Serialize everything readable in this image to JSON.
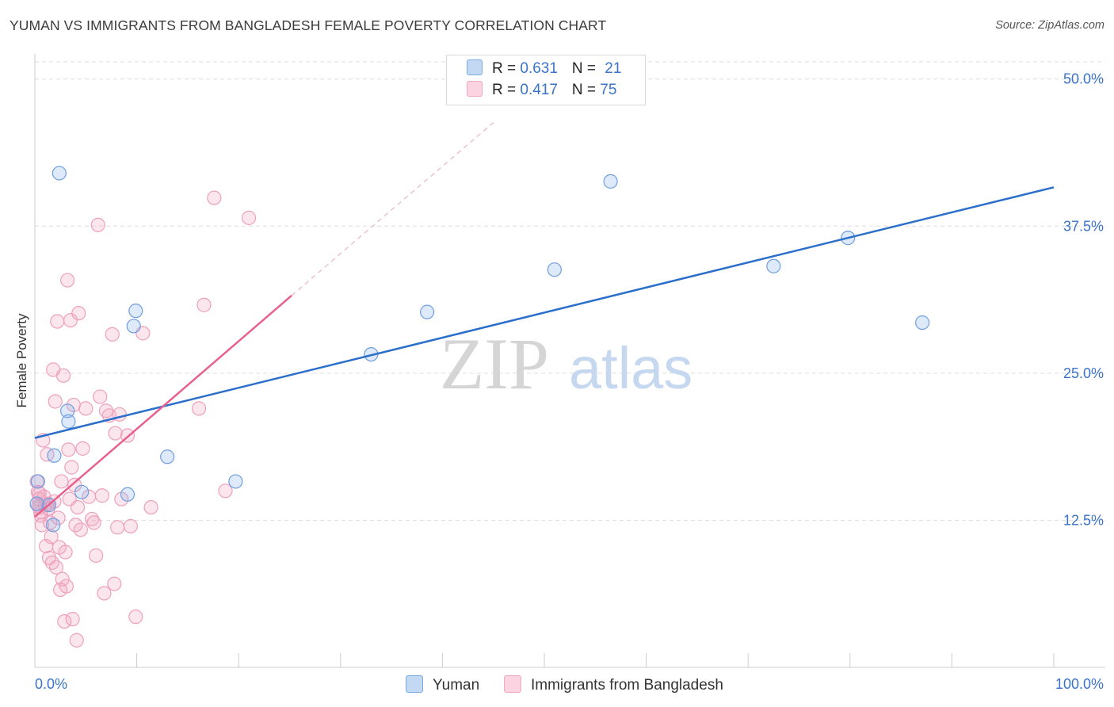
{
  "header": {
    "title": "YUMAN VS IMMIGRANTS FROM BANGLADESH FEMALE POVERTY CORRELATION CHART",
    "source": "Source: ZipAtlas.com"
  },
  "watermark": {
    "zip": "ZIP",
    "atlas": "atlas"
  },
  "legend_top": {
    "rows": [
      {
        "r_label": "R = ",
        "r_value": "0.631",
        "n_label": "N = ",
        "n_value": "21"
      },
      {
        "r_label": "R = ",
        "r_value": "0.417",
        "n_label": "N = ",
        "n_value": "75"
      }
    ]
  },
  "chart_data": {
    "type": "scatter",
    "title": "YUMAN VS IMMIGRANTS FROM BANGLADESH FEMALE POVERTY CORRELATION CHART",
    "xlabel": "",
    "ylabel": "Female Poverty",
    "xlim": [
      0,
      100
    ],
    "ylim": [
      0,
      52
    ],
    "x_tick_labels": [
      "0.0%",
      "100.0%"
    ],
    "y_ticks": [
      {
        "value": 12.5,
        "label": "12.5%"
      },
      {
        "value": 25.0,
        "label": "25.0%"
      },
      {
        "value": 37.5,
        "label": "37.5%"
      },
      {
        "value": 50.0,
        "label": "50.0%"
      }
    ],
    "grid": true,
    "legend_position": "bottom",
    "series": [
      {
        "name": "Yuman",
        "color": "#7aaae6",
        "line_color": "#2b6fcc",
        "R": 0.631,
        "N": 21,
        "trend": {
          "x": [
            0,
            100
          ],
          "y": [
            19.5,
            40.8
          ]
        },
        "points": [
          {
            "x": 2.4,
            "y": 42.0
          },
          {
            "x": 3.2,
            "y": 21.8
          },
          {
            "x": 3.3,
            "y": 20.9
          },
          {
            "x": 1.9,
            "y": 18.0
          },
          {
            "x": 0.3,
            "y": 15.8
          },
          {
            "x": 4.6,
            "y": 14.9
          },
          {
            "x": 1.4,
            "y": 13.8
          },
          {
            "x": 1.8,
            "y": 12.1
          },
          {
            "x": 9.9,
            "y": 30.3
          },
          {
            "x": 9.7,
            "y": 29.0
          },
          {
            "x": 13.0,
            "y": 17.9
          },
          {
            "x": 9.1,
            "y": 14.7
          },
          {
            "x": 19.7,
            "y": 15.8
          },
          {
            "x": 33.0,
            "y": 26.6
          },
          {
            "x": 38.5,
            "y": 30.2
          },
          {
            "x": 51.0,
            "y": 33.8
          },
          {
            "x": 56.5,
            "y": 41.3
          },
          {
            "x": 72.5,
            "y": 34.1
          },
          {
            "x": 79.8,
            "y": 36.5
          },
          {
            "x": 87.1,
            "y": 29.3
          },
          {
            "x": 0.2,
            "y": 13.9
          }
        ]
      },
      {
        "name": "Immigrants from Bangladesh",
        "color": "#f2a6c0",
        "line_color": "#e8608e",
        "R": 0.417,
        "N": 75,
        "trend": {
          "x": [
            0,
            25.2
          ],
          "y": [
            12.8,
            31.6
          ]
        },
        "trend_extension": {
          "x": [
            25.2,
            45.0
          ],
          "y": [
            31.6,
            46.3
          ]
        },
        "points": [
          {
            "x": 0.2,
            "y": 15.8
          },
          {
            "x": 0.3,
            "y": 14.9
          },
          {
            "x": 0.4,
            "y": 14.3
          },
          {
            "x": 0.5,
            "y": 13.6
          },
          {
            "x": 0.6,
            "y": 12.9
          },
          {
            "x": 0.7,
            "y": 12.1
          },
          {
            "x": 0.8,
            "y": 19.3
          },
          {
            "x": 0.9,
            "y": 14.5
          },
          {
            "x": 1.0,
            "y": 13.8
          },
          {
            "x": 1.1,
            "y": 10.3
          },
          {
            "x": 1.2,
            "y": 18.1
          },
          {
            "x": 1.3,
            "y": 13.5
          },
          {
            "x": 1.4,
            "y": 9.3
          },
          {
            "x": 1.5,
            "y": 12.3
          },
          {
            "x": 1.6,
            "y": 11.1
          },
          {
            "x": 1.7,
            "y": 8.9
          },
          {
            "x": 1.8,
            "y": 25.3
          },
          {
            "x": 1.9,
            "y": 14.1
          },
          {
            "x": 2.0,
            "y": 22.6
          },
          {
            "x": 2.1,
            "y": 8.5
          },
          {
            "x": 2.2,
            "y": 29.4
          },
          {
            "x": 2.3,
            "y": 12.7
          },
          {
            "x": 2.4,
            "y": 10.2
          },
          {
            "x": 2.5,
            "y": 6.6
          },
          {
            "x": 2.6,
            "y": 15.8
          },
          {
            "x": 2.7,
            "y": 7.5
          },
          {
            "x": 2.8,
            "y": 24.8
          },
          {
            "x": 2.9,
            "y": 3.9
          },
          {
            "x": 3.0,
            "y": 9.8
          },
          {
            "x": 3.1,
            "y": 6.9
          },
          {
            "x": 3.2,
            "y": 32.9
          },
          {
            "x": 3.3,
            "y": 18.5
          },
          {
            "x": 3.4,
            "y": 14.3
          },
          {
            "x": 3.5,
            "y": 29.5
          },
          {
            "x": 3.6,
            "y": 17.0
          },
          {
            "x": 3.7,
            "y": 4.1
          },
          {
            "x": 3.8,
            "y": 22.3
          },
          {
            "x": 3.9,
            "y": 15.5
          },
          {
            "x": 4.0,
            "y": 12.1
          },
          {
            "x": 4.1,
            "y": 2.3
          },
          {
            "x": 4.2,
            "y": 13.6
          },
          {
            "x": 4.3,
            "y": 30.1
          },
          {
            "x": 4.5,
            "y": 11.7
          },
          {
            "x": 4.7,
            "y": 18.6
          },
          {
            "x": 5.0,
            "y": 22.0
          },
          {
            "x": 5.3,
            "y": 14.5
          },
          {
            "x": 5.6,
            "y": 12.6
          },
          {
            "x": 5.8,
            "y": 12.3
          },
          {
            "x": 6.0,
            "y": 9.5
          },
          {
            "x": 6.2,
            "y": 37.6
          },
          {
            "x": 6.4,
            "y": 23.0
          },
          {
            "x": 6.6,
            "y": 14.6
          },
          {
            "x": 6.8,
            "y": 6.3
          },
          {
            "x": 7.0,
            "y": 21.8
          },
          {
            "x": 7.3,
            "y": 21.4
          },
          {
            "x": 7.6,
            "y": 28.3
          },
          {
            "x": 7.8,
            "y": 7.1
          },
          {
            "x": 7.9,
            "y": 19.9
          },
          {
            "x": 8.1,
            "y": 11.9
          },
          {
            "x": 8.3,
            "y": 21.5
          },
          {
            "x": 8.5,
            "y": 14.3
          },
          {
            "x": 9.1,
            "y": 19.7
          },
          {
            "x": 9.4,
            "y": 12.0
          },
          {
            "x": 9.9,
            "y": 4.3
          },
          {
            "x": 10.6,
            "y": 28.4
          },
          {
            "x": 11.4,
            "y": 13.6
          },
          {
            "x": 16.1,
            "y": 22.0
          },
          {
            "x": 16.6,
            "y": 30.8
          },
          {
            "x": 17.6,
            "y": 39.9
          },
          {
            "x": 18.7,
            "y": 15.0
          },
          {
            "x": 21.0,
            "y": 38.2
          },
          {
            "x": 0.35,
            "y": 13.7
          },
          {
            "x": 0.45,
            "y": 14.8
          },
          {
            "x": 0.55,
            "y": 13.2
          },
          {
            "x": 1.25,
            "y": 13.9
          }
        ]
      }
    ]
  },
  "legend_bottom": {
    "items": [
      {
        "label": "Yuman"
      },
      {
        "label": "Immigrants from Bangladesh"
      }
    ]
  }
}
